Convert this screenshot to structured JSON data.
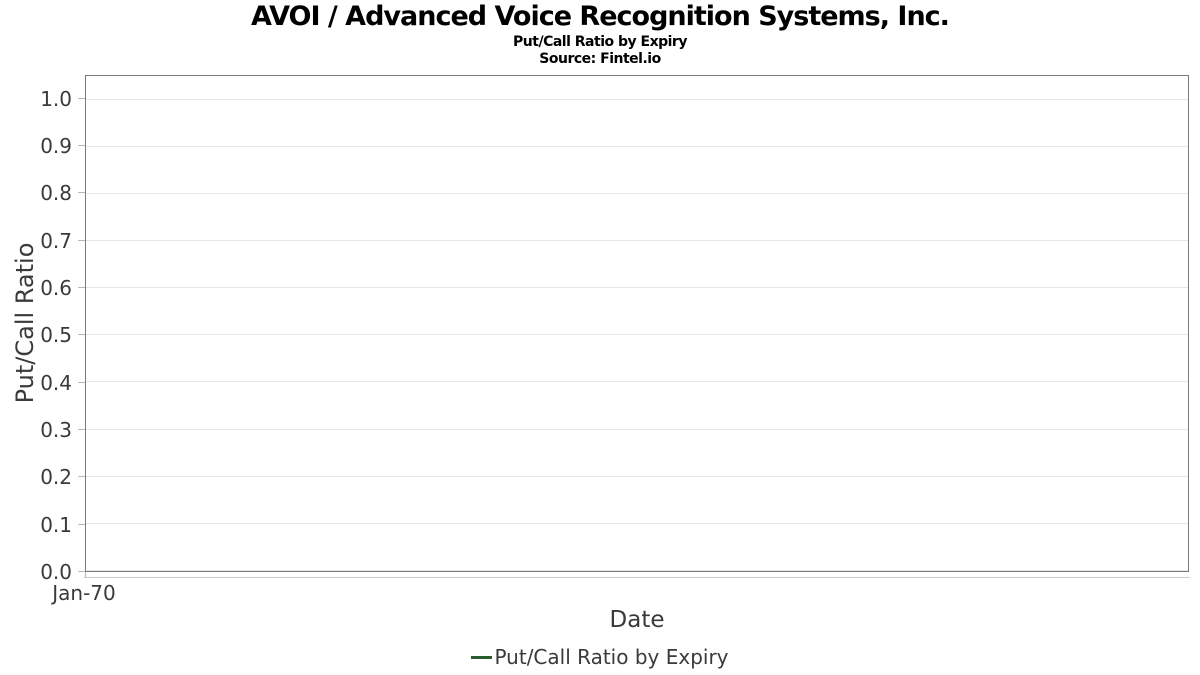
{
  "chart_data": {
    "type": "line",
    "title": "AVOI / Advanced Voice Recognition Systems, Inc.",
    "subtitle": "Put/Call Ratio by Expiry",
    "source": "Source: Fintel.io",
    "xlabel": "Date",
    "ylabel": "Put/Call Ratio",
    "xticks": [
      "Jan-70"
    ],
    "yticks": [
      0,
      0.1,
      0.2,
      0.3,
      0.4,
      0.5,
      0.6,
      0.7,
      0.8,
      0.9,
      1.0
    ],
    "ytick_labels": [
      "0.0",
      "0.1",
      "0.2",
      "0.3",
      "0.4",
      "0.5",
      "0.6",
      "0.7",
      "0.8",
      "0.9",
      "1.0"
    ],
    "ylim": [
      0,
      1.05
    ],
    "grid": "horizontal",
    "legend_position": "bottom-center",
    "empty": true,
    "series": [
      {
        "name": "Put/Call Ratio by Expiry",
        "color": "#275c2f",
        "x": [],
        "values": []
      }
    ]
  },
  "colors": {
    "legend_line": "#275c2f",
    "grid_line": "#e8e8e8",
    "plot_border": "#7a7a7a",
    "axis_text": "#3a3a3a",
    "title_text": "#000000",
    "tick_mark": "#b8b8b8"
  }
}
